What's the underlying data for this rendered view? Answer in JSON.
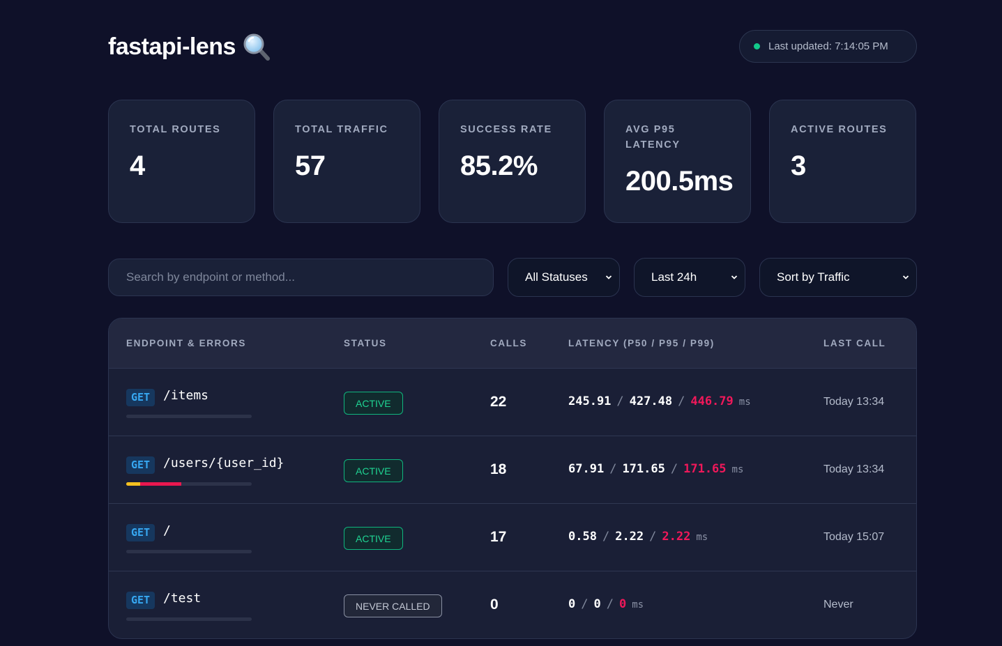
{
  "header": {
    "title": "fastapi-lens",
    "last_updated": "Last updated: 7:14:05 PM"
  },
  "stats": [
    {
      "label": "TOTAL ROUTES",
      "value": "4"
    },
    {
      "label": "TOTAL TRAFFIC",
      "value": "57"
    },
    {
      "label": "SUCCESS RATE",
      "value": "85.2%"
    },
    {
      "label": "AVG P95 LATENCY",
      "value": "200.5ms"
    },
    {
      "label": "ACTIVE ROUTES",
      "value": "3"
    }
  ],
  "filters": {
    "search_placeholder": "Search by endpoint or method...",
    "status_select": "All Statuses",
    "time_select": "Last 24h",
    "sort_select": "Sort by Traffic"
  },
  "table": {
    "headers": {
      "endpoint": "ENDPOINT & ERRORS",
      "status": "STATUS",
      "calls": "CALLS",
      "latency": "LATENCY (P50 / P95 / P99)",
      "last_call": "LAST CALL"
    },
    "rows": [
      {
        "method": "GET",
        "path": "/items",
        "status": "ACTIVE",
        "calls": "22",
        "p50": "245.91",
        "p95": "427.48",
        "p99": "446.79",
        "unit": "ms",
        "last_call": "Today 13:34",
        "error_4xx_fraction": 0,
        "error_5xx_fraction": 0
      },
      {
        "method": "GET",
        "path": "/users/{user_id}",
        "status": "ACTIVE",
        "calls": "18",
        "p50": "67.91",
        "p95": "171.65",
        "p99": "171.65",
        "unit": "ms",
        "last_call": "Today 13:34",
        "error_4xx_fraction": 0.11,
        "error_5xx_fraction": 0.33
      },
      {
        "method": "GET",
        "path": "/",
        "status": "ACTIVE",
        "calls": "17",
        "p50": "0.58",
        "p95": "2.22",
        "p99": "2.22",
        "unit": "ms",
        "last_call": "Today 15:07",
        "error_4xx_fraction": 0,
        "error_5xx_fraction": 0
      },
      {
        "method": "GET",
        "path": "/test",
        "status": "NEVER CALLED",
        "calls": "0",
        "p50": "0",
        "p95": "0",
        "p99": "0",
        "unit": "ms",
        "last_call": "Never",
        "error_4xx_fraction": 0,
        "error_5xx_fraction": 0
      }
    ]
  },
  "colors": {
    "background": "#0f1129",
    "card": "#1a2138",
    "active_green": "#1fd493",
    "p99_red": "#f0185a",
    "method_blue": "#37a8f2",
    "error_yellow": "#f5c020",
    "error_red": "#e8174f"
  },
  "icons": {
    "title_icon": "magnifying-glass-icon",
    "status_dot": "live-dot-icon",
    "select_arrow": "chevron-down-icon"
  }
}
